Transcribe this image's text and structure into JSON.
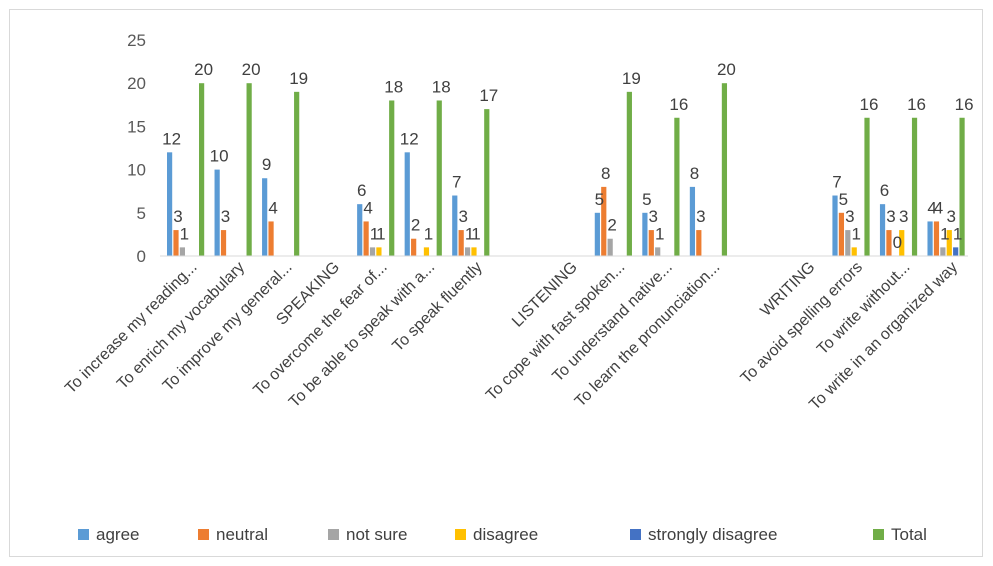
{
  "chart_data": {
    "type": "bar",
    "ylim": [
      0,
      25
    ],
    "yticks": [
      0,
      5,
      10,
      15,
      20,
      25
    ],
    "grid": false,
    "legend_position": "bottom",
    "categories": [
      "To increase my reading...",
      "To enrich my vocabulary",
      "To improve my general...",
      "SPEAKING",
      "To overcome the fear of...",
      "To be able to speak with a...",
      "To speak fluently",
      "",
      "LISTENING",
      "To cope with fast spoken...",
      "To understand native...",
      "To learn the pronunciation...",
      "",
      "WRITING",
      "To avoid spelling errors",
      "To write without...",
      "To write in an organized way"
    ],
    "series": [
      {
        "name": "agree",
        "color": "#5b9bd5",
        "values": [
          12,
          10,
          9,
          null,
          6,
          12,
          7,
          null,
          null,
          5,
          5,
          8,
          null,
          null,
          7,
          6,
          4
        ]
      },
      {
        "name": "neutral",
        "color": "#ed7d31",
        "values": [
          3,
          3,
          4,
          null,
          4,
          2,
          3,
          null,
          null,
          8,
          3,
          3,
          null,
          null,
          5,
          3,
          4
        ]
      },
      {
        "name": "not sure",
        "color": "#a5a5a5",
        "values": [
          1,
          null,
          null,
          null,
          1,
          null,
          1,
          null,
          null,
          2,
          1,
          null,
          null,
          null,
          3,
          0,
          1
        ]
      },
      {
        "name": "disagree",
        "color": "#ffc000",
        "values": [
          null,
          null,
          null,
          null,
          1,
          1,
          1,
          null,
          null,
          null,
          null,
          null,
          null,
          null,
          1,
          3,
          3
        ]
      },
      {
        "name": "strongly disagree",
        "color": "#4472c4",
        "values": [
          null,
          null,
          null,
          null,
          null,
          null,
          null,
          null,
          null,
          null,
          null,
          null,
          null,
          null,
          null,
          null,
          1
        ]
      },
      {
        "name": "Total",
        "color": "#70ad47",
        "values": [
          20,
          20,
          19,
          null,
          18,
          18,
          17,
          null,
          null,
          19,
          16,
          20,
          null,
          null,
          16,
          16,
          16
        ]
      }
    ]
  }
}
